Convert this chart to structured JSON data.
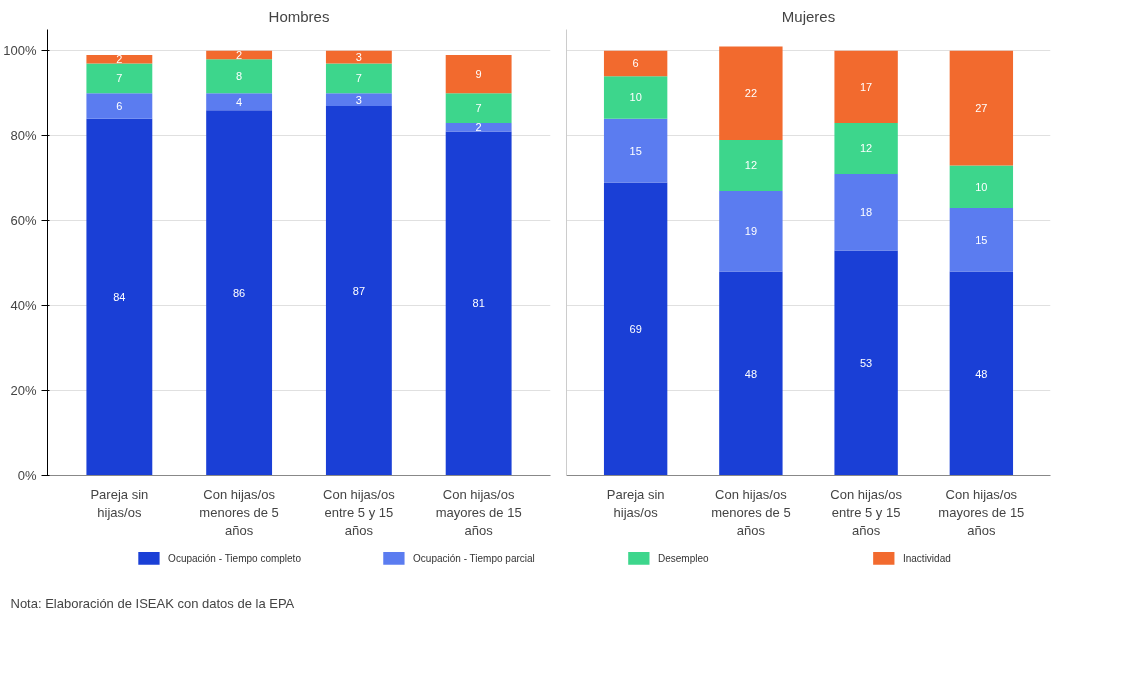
{
  "chart_data": [
    {
      "type": "bar",
      "title": "Hombres",
      "stacked": true,
      "data_labels": true,
      "grid": "y",
      "legend": "bottom",
      "categories": [
        "Pareja sin hijas/os",
        "Con hijas/os menores de 5 años",
        "Con hijas/os entre 5 y 15 años",
        "Con hijas/os mayores de 15 años"
      ],
      "series": [
        {
          "name": "Ocupación - Tiempo completo",
          "color": "#1a3fd6",
          "values": [
            84,
            86,
            87,
            81
          ]
        },
        {
          "name": "Ocupación - Tiempo parcial",
          "color": "#5b7cf0",
          "values": [
            6,
            4,
            3,
            2
          ]
        },
        {
          "name": "Desempleo",
          "color": "#3dd68c",
          "values": [
            7,
            8,
            7,
            7
          ]
        },
        {
          "name": "Inactividad",
          "color": "#f26a2e",
          "values": [
            2,
            2,
            3,
            9
          ]
        }
      ],
      "ylim": [
        0,
        105
      ],
      "yticks": [
        {
          "value": 0,
          "label": "0%"
        },
        {
          "value": 20,
          "label": "20%"
        },
        {
          "value": 40,
          "label": "40%"
        },
        {
          "value": 60,
          "label": "60%"
        },
        {
          "value": 80,
          "label": "80%"
        },
        {
          "value": 100,
          "label": "100%"
        }
      ],
      "annotations": [
        "Nota: Elaboración de ISEAK con datos de la EPA"
      ]
    },
    {
      "type": "bar",
      "title": "Mujeres",
      "stacked": true,
      "data_labels": true,
      "grid": "y",
      "tick_labels": "x",
      "categories": [
        "Pareja sin hijas/os",
        "Con hijas/os menores de 5 años",
        "Con hijas/os entre 5 y 15 años",
        "Con hijas/os mayores de 15 años"
      ],
      "series": [
        {
          "color": "#1a3fd6",
          "values": [
            69,
            48,
            53,
            48
          ]
        },
        {
          "color": "#5b7cf0",
          "values": [
            15,
            19,
            18,
            15
          ]
        },
        {
          "color": "#3dd68c",
          "values": [
            10,
            12,
            12,
            10
          ]
        },
        {
          "color": "#f26a2e",
          "values": [
            6,
            22,
            17,
            27
          ]
        }
      ],
      "ylim": [
        0,
        105
      ],
      "yticks": [
        {
          "value": 0,
          "label": "0%"
        },
        {
          "value": 20,
          "label": "20%"
        },
        {
          "value": 40,
          "label": "40%"
        },
        {
          "value": 60,
          "label": "60%"
        },
        {
          "value": 80,
          "label": "80%"
        },
        {
          "value": 100,
          "label": "100%"
        }
      ]
    }
  ]
}
